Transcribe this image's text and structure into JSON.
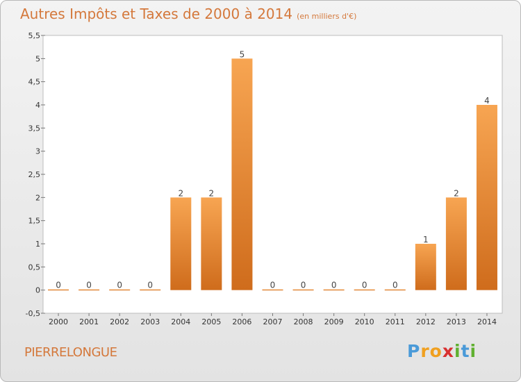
{
  "header": {
    "title": "Autres Impôts et Taxes de 2000 à 2014",
    "subtitle": "(en milliers d'€)"
  },
  "footer": {
    "commune": "PIERRELONGUE",
    "logo": {
      "letters": [
        "P",
        "r",
        "o",
        "x",
        "i",
        "t",
        "i"
      ],
      "colors": [
        "#4a9ad8",
        "#f0a020",
        "#f0a020",
        "#d83030",
        "#60b030",
        "#4a9ad8",
        "#60b030"
      ]
    }
  },
  "chart_data": {
    "type": "bar",
    "categories": [
      "2000",
      "2001",
      "2002",
      "2003",
      "2004",
      "2005",
      "2006",
      "2007",
      "2008",
      "2009",
      "2010",
      "2011",
      "2012",
      "2013",
      "2014"
    ],
    "values": [
      0,
      0,
      0,
      0,
      2,
      2,
      5,
      0,
      0,
      0,
      0,
      0,
      1,
      2,
      4
    ],
    "data_labels": [
      "0",
      "0",
      "0",
      "0",
      "2",
      "2",
      "5",
      "0",
      "0",
      "0",
      "0",
      "0",
      "1",
      "2",
      "4"
    ],
    "ylim": [
      -0.5,
      5.5
    ],
    "yticks": [
      -0.5,
      0,
      0.5,
      1,
      1.5,
      2,
      2.5,
      3,
      3.5,
      4,
      4.5,
      5,
      5.5
    ],
    "ytick_labels": [
      "-0,5",
      "0",
      "0,5",
      "1",
      "1,5",
      "2",
      "2,5",
      "3",
      "3,5",
      "4",
      "4,5",
      "5",
      "5,5"
    ],
    "grid": false,
    "bar_color_top": "#f7a552",
    "bar_color_bottom": "#cf6c1c"
  }
}
